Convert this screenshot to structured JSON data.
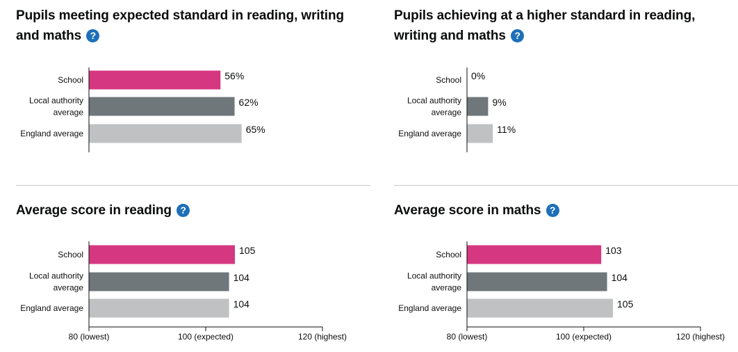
{
  "colors": {
    "school": "#d53880",
    "local_authority": "#6f777b",
    "england": "#bfc1c3",
    "help": "#1d70b8"
  },
  "panels": [
    {
      "title_line1": "Pupils meeting expected standard in reading, writing",
      "title_line2": "and maths",
      "help": "?"
    },
    {
      "title_line1": "Pupils achieving at a higher standard in reading,",
      "title_line2": "writing and maths",
      "help": "?"
    },
    {
      "title_line1": "Average score in reading",
      "title_line2": "",
      "help": "?"
    },
    {
      "title_line1": "Average score in maths",
      "title_line2": "",
      "help": "?"
    }
  ],
  "chart_data": [
    {
      "type": "bar",
      "orientation": "horizontal",
      "title": "Pupils meeting expected standard in reading, writing and maths",
      "categories": [
        [
          "School"
        ],
        [
          "Local authority",
          "average"
        ],
        [
          "England average"
        ]
      ],
      "values": [
        56,
        62,
        65
      ],
      "value_labels": [
        "56%",
        "62%",
        "65%"
      ],
      "xlim": [
        0,
        100
      ],
      "ticks": []
    },
    {
      "type": "bar",
      "orientation": "horizontal",
      "title": "Pupils achieving at a higher standard in reading, writing and maths",
      "categories": [
        [
          "School"
        ],
        [
          "Local authority",
          "average"
        ],
        [
          "England average"
        ]
      ],
      "values": [
        0,
        9,
        11
      ],
      "value_labels": [
        "0%",
        "9%",
        "11%"
      ],
      "xlim": [
        0,
        100
      ],
      "ticks": []
    },
    {
      "type": "bar",
      "orientation": "horizontal",
      "title": "Average score in reading",
      "categories": [
        [
          "School"
        ],
        [
          "Local authority",
          "average"
        ],
        [
          "England average"
        ]
      ],
      "values": [
        105,
        104,
        104
      ],
      "value_labels": [
        "105",
        "104",
        "104"
      ],
      "xlim": [
        80,
        120
      ],
      "ticks": [
        {
          "value": 80,
          "label": "80 (lowest)"
        },
        {
          "value": 100,
          "label": "100 (expected)"
        },
        {
          "value": 120,
          "label": "120 (highest)"
        }
      ]
    },
    {
      "type": "bar",
      "orientation": "horizontal",
      "title": "Average score in maths",
      "categories": [
        [
          "School"
        ],
        [
          "Local authority",
          "average"
        ],
        [
          "England average"
        ]
      ],
      "values": [
        103,
        104,
        105
      ],
      "value_labels": [
        "103",
        "104",
        "105"
      ],
      "xlim": [
        80,
        120
      ],
      "ticks": [
        {
          "value": 80,
          "label": "80 (lowest)"
        },
        {
          "value": 100,
          "label": "100 (expected)"
        },
        {
          "value": 120,
          "label": "120 (highest)"
        }
      ]
    }
  ]
}
